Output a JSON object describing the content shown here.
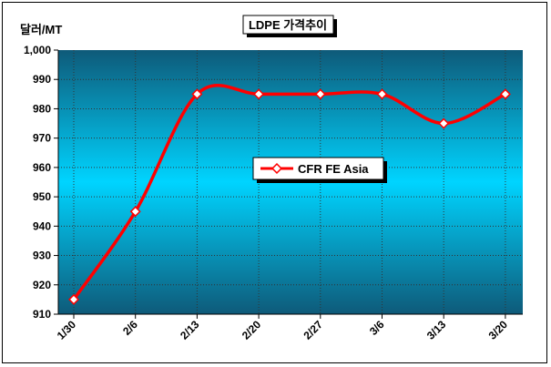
{
  "chart_data": {
    "type": "line",
    "title": "LDPE 가격추이",
    "ylabel": "달러/MT",
    "xlabel": "",
    "categories": [
      "1/30",
      "2/6",
      "2/13",
      "2/20",
      "2/27",
      "3/6",
      "3/13",
      "3/20"
    ],
    "series": [
      {
        "name": "CFR FE Asia",
        "values": [
          915,
          945,
          985,
          985,
          985,
          985,
          975,
          985
        ]
      }
    ],
    "ylim": [
      910,
      1000
    ],
    "yticks": [
      910,
      920,
      930,
      940,
      950,
      960,
      970,
      980,
      990,
      "1,000"
    ],
    "grid": true,
    "legend": "center-right",
    "colors": {
      "line": "#ff0000",
      "marker_fill": "#ffffff",
      "plot_edge": "#0e5a79",
      "plot_center": "#00d4ff"
    }
  }
}
